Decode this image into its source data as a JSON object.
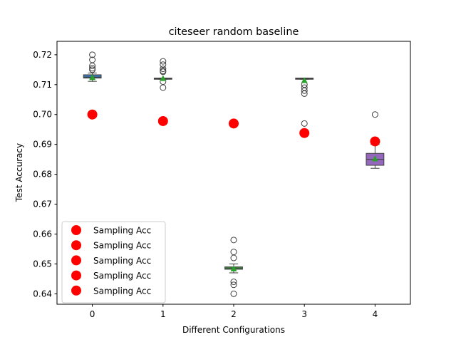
{
  "chart_data": {
    "type": "box",
    "title": "citeseer random baseline",
    "xlabel": "Different Configurations",
    "ylabel": "Test Accuracy",
    "categories": [
      "0",
      "1",
      "2",
      "3",
      "4"
    ],
    "ylim": [
      0.6365,
      0.7245
    ],
    "yticks": [
      0.64,
      0.65,
      0.66,
      0.67,
      0.68,
      0.69,
      0.7,
      0.71,
      0.72
    ],
    "ytick_labels": [
      "0.64",
      "0.65",
      "0.66",
      "0.67",
      "0.68",
      "0.69",
      "0.70",
      "0.71",
      "0.72"
    ],
    "grid": false,
    "legend_position": "lower-left",
    "colors": {
      "boxes": [
        "#3a75af",
        "#5a5a5a",
        "#3d9a3d",
        "#5a5a5a",
        "#9467bd"
      ],
      "mean_marker": "#2ca02c",
      "sampling": "#ff0000"
    },
    "boxes": [
      {
        "category": "0",
        "q1": 0.7122,
        "median": 0.7125,
        "q3": 0.7133,
        "whislo": 0.7111,
        "whishi": 0.7139,
        "mean": 0.7124,
        "fliers": [
          0.72,
          0.7183,
          0.7163,
          0.7155,
          0.715
        ]
      },
      {
        "category": "1",
        "q1": 0.7118,
        "median": 0.712,
        "q3": 0.7122,
        "whislo": 0.7118,
        "whishi": 0.7122,
        "mean": 0.7121,
        "fliers": [
          0.7178,
          0.7167,
          0.7153,
          0.7146,
          0.7143,
          0.711,
          0.709
        ]
      },
      {
        "category": "2",
        "q1": 0.6482,
        "median": 0.6486,
        "q3": 0.649,
        "whislo": 0.647,
        "whishi": 0.65,
        "mean": 0.6484,
        "fliers": [
          0.658,
          0.654,
          0.652,
          0.644,
          0.643,
          0.64
        ]
      },
      {
        "category": "3",
        "q1": 0.7118,
        "median": 0.712,
        "q3": 0.7122,
        "whislo": 0.7118,
        "whishi": 0.7122,
        "mean": 0.7114,
        "fliers": [
          0.71,
          0.709,
          0.708,
          0.707,
          0.697
        ]
      },
      {
        "category": "4",
        "q1": 0.683,
        "median": 0.685,
        "q3": 0.687,
        "whislo": 0.682,
        "whishi": 0.69,
        "mean": 0.6852,
        "fliers": [
          0.7
        ]
      }
    ],
    "sampling_acc": {
      "name": "Sampling Acc",
      "values": [
        0.7,
        0.6978,
        0.697,
        0.6938,
        0.691
      ]
    },
    "legend": [
      "Sampling Acc",
      "Sampling Acc",
      "Sampling Acc",
      "Sampling Acc",
      "Sampling Acc"
    ]
  }
}
